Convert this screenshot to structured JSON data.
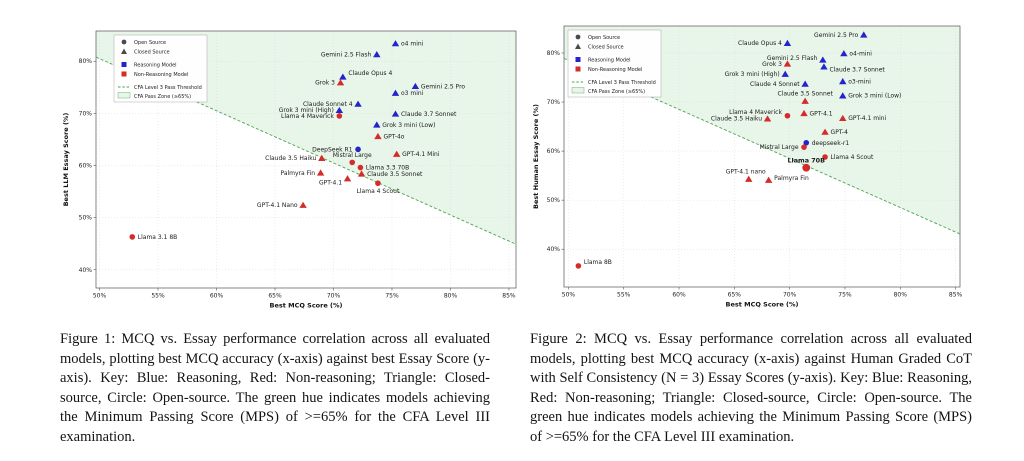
{
  "colors": {
    "reasoning": "#2424cd",
    "non_reasoning": "#d42b2b",
    "threshold": "#49a552",
    "pass_zone": "#e8f5e9",
    "source_marker": "#4a4a4a",
    "grid": "#d9d9d9",
    "spine": "#555555",
    "text": "#222222"
  },
  "figures": [
    {
      "caption": "Figure 1: MCQ vs. Essay performance correlation across all evaluated models, plotting best MCQ accuracy (x-axis) against best Essay Score (y-axis). Key: Blue: Reasoning, Red: Non-reasoning; Triangle: Closed-source, Circle: Open-source. The green hue indicates models achieving the Minimum Passing Score (MPS) of >=65% for the CFA Level III examination."
    },
    {
      "caption": "Figure 2: MCQ vs. Essay performance correlation across all evaluated models, plotting best MCQ accuracy (x-axis) against Human Graded CoT with Self Consistency (N = 3) Essay Scores (y-axis). Key: Blue: Reasoning, Red: Non-reasoning; Triangle: Closed-source, Circle: Open-source. The green hue indicates models achieving the Minimum Passing Score (MPS) of >=65% for the CFA Level III examination."
    }
  ],
  "chart_data": [
    {
      "type": "scatter",
      "title": "",
      "xlabel": "Best MCQ Score (%)",
      "ylabel": "Best LLM Essay Score (%)",
      "xlim": [
        49.7,
        85.6
      ],
      "ylim": [
        36.5,
        85.8
      ],
      "xticks": [
        50,
        55,
        60,
        65,
        70,
        75,
        80,
        85
      ],
      "xtick_labels": [
        "50%",
        "55%",
        "60%",
        "65%",
        "70%",
        "75%",
        "80%",
        "85%"
      ],
      "yticks": [
        40,
        50,
        60,
        70,
        80
      ],
      "ytick_labels": [
        "40%",
        "50%",
        "60%",
        "70%",
        "80%"
      ],
      "grid": true,
      "legend_position": "upper-left",
      "threshold_line": {
        "x1": 49.7,
        "y1": 80.8,
        "x2": 85.6,
        "y2": 44.9
      },
      "legend": [
        {
          "swatch": "circle",
          "label": "Open Source"
        },
        {
          "swatch": "triangle",
          "label": "Closed Source"
        },
        {
          "swatch": "square_blue",
          "label": "Reasoning Model"
        },
        {
          "swatch": "square_red",
          "label": "Non-Reasoning Model"
        },
        {
          "swatch": "dashed_line",
          "label": "CFA Level 3 Pass Threshold"
        },
        {
          "swatch": "zone",
          "label": "CFA Pass Zone (≥65%)"
        }
      ],
      "points": [
        {
          "label": "o4 mini",
          "x": 75.3,
          "y": 83.4,
          "marker": "triangle",
          "class": "reasoning",
          "side": "right"
        },
        {
          "label": "Gemini 2.5 Flash",
          "x": 73.7,
          "y": 81.3,
          "marker": "triangle",
          "class": "reasoning",
          "side": "left"
        },
        {
          "label": "Claude Opus 4",
          "x": 70.8,
          "y": 77.0,
          "marker": "triangle",
          "class": "reasoning",
          "side": "right",
          "dy": -4
        },
        {
          "label": "Grok 3",
          "x": 70.6,
          "y": 75.9,
          "marker": "triangle",
          "class": "non_reasoning",
          "side": "left"
        },
        {
          "label": "Gemini 2.5 Pro",
          "x": 77.0,
          "y": 75.2,
          "marker": "triangle",
          "class": "reasoning",
          "side": "right"
        },
        {
          "label": "o3 mini",
          "x": 75.3,
          "y": 73.9,
          "marker": "triangle",
          "class": "reasoning",
          "side": "right"
        },
        {
          "label": "Claude Sonnet 4",
          "x": 72.1,
          "y": 71.8,
          "marker": "triangle",
          "class": "reasoning",
          "side": "left"
        },
        {
          "label": "Grok 3 mini (High)",
          "x": 70.5,
          "y": 70.6,
          "marker": "triangle",
          "class": "reasoning",
          "side": "left"
        },
        {
          "label": "Llama 4 Maverick",
          "x": 70.5,
          "y": 69.5,
          "marker": "circle",
          "class": "non_reasoning",
          "side": "left"
        },
        {
          "label": "Claude 3.7 Sonnet",
          "x": 75.3,
          "y": 69.9,
          "marker": "triangle",
          "class": "reasoning",
          "side": "right"
        },
        {
          "label": "Grok 3 mini (Low)",
          "x": 73.7,
          "y": 67.8,
          "marker": "triangle",
          "class": "reasoning",
          "side": "right"
        },
        {
          "label": "GPT-4o",
          "x": 73.8,
          "y": 65.6,
          "marker": "triangle",
          "class": "non_reasoning",
          "side": "right"
        },
        {
          "label": "DeepSeek R1",
          "x": 72.1,
          "y": 63.1,
          "marker": "circle",
          "class": "reasoning",
          "side": "left"
        },
        {
          "label": "GPT-4.1 Mini",
          "x": 75.4,
          "y": 62.2,
          "marker": "triangle",
          "class": "non_reasoning",
          "side": "right"
        },
        {
          "label": "Claude 3.5 Haiku",
          "x": 69.0,
          "y": 61.4,
          "marker": "triangle",
          "class": "non_reasoning",
          "side": "left"
        },
        {
          "label": "Mistral Large",
          "x": 71.6,
          "y": 60.6,
          "marker": "circle",
          "class": "non_reasoning",
          "side": "above"
        },
        {
          "label": "Llama 3.3 70B",
          "x": 72.3,
          "y": 59.6,
          "marker": "circle",
          "class": "non_reasoning",
          "side": "right"
        },
        {
          "label": "Claude 3.5 Sonnet",
          "x": 72.4,
          "y": 58.4,
          "marker": "triangle",
          "class": "non_reasoning",
          "side": "right"
        },
        {
          "label": "Palmyra Fin",
          "x": 68.9,
          "y": 58.6,
          "marker": "triangle",
          "class": "non_reasoning",
          "side": "left"
        },
        {
          "label": "GPT-4.1",
          "x": 71.2,
          "y": 57.5,
          "marker": "triangle",
          "class": "non_reasoning",
          "side": "left",
          "dy": 4
        },
        {
          "label": "Llama 4 Scout",
          "x": 73.8,
          "y": 56.6,
          "marker": "circle",
          "class": "non_reasoning",
          "side": "below"
        },
        {
          "label": "GPT-4.1 Nano",
          "x": 67.4,
          "y": 52.4,
          "marker": "triangle",
          "class": "non_reasoning",
          "side": "left"
        },
        {
          "label": "Llama 3.1 8B",
          "x": 52.8,
          "y": 46.3,
          "marker": "circle",
          "class": "non_reasoning",
          "side": "right"
        }
      ]
    },
    {
      "type": "scatter",
      "title": "",
      "xlabel": "Best MCQ Score (%)",
      "ylabel": "Best Human Essay Score (%)",
      "xlim": [
        49.6,
        85.4
      ],
      "ylim": [
        32.3,
        85.5
      ],
      "xticks": [
        50,
        55,
        60,
        65,
        70,
        75,
        80,
        85
      ],
      "xtick_labels": [
        "50%",
        "55%",
        "60%",
        "65%",
        "70%",
        "75%",
        "80%",
        "85%"
      ],
      "yticks": [
        40,
        50,
        60,
        70,
        80
      ],
      "ytick_labels": [
        "40%",
        "50%",
        "60%",
        "70%",
        "80%"
      ],
      "grid": true,
      "legend_position": "upper-left",
      "threshold_line": {
        "x1": 49.6,
        "y1": 78.9,
        "x2": 85.4,
        "y2": 43.1
      },
      "legend": [
        {
          "swatch": "circle",
          "label": "Open Source"
        },
        {
          "swatch": "triangle",
          "label": "Closed Source"
        },
        {
          "swatch": "square_blue",
          "label": "Reasoning Model"
        },
        {
          "swatch": "square_red",
          "label": "Non-Reasoning Model"
        },
        {
          "swatch": "dashed_line",
          "label": "CFA Level 3 Pass Threshold"
        },
        {
          "swatch": "zone",
          "label": "CFA Pass Zone (≥65%)"
        }
      ],
      "points": [
        {
          "label": "Gemini 2.5 Pro",
          "x": 76.7,
          "y": 83.7,
          "marker": "triangle",
          "class": "reasoning",
          "side": "left"
        },
        {
          "label": "Claude Opus 4",
          "x": 69.8,
          "y": 82.0,
          "marker": "triangle",
          "class": "reasoning",
          "side": "left"
        },
        {
          "label": "o4-mini",
          "x": 74.9,
          "y": 79.9,
          "marker": "triangle",
          "class": "reasoning",
          "side": "right"
        },
        {
          "label": "Gemini 2.5 Flash",
          "x": 73.0,
          "y": 78.6,
          "marker": "triangle",
          "class": "reasoning",
          "side": "left",
          "dy": -2
        },
        {
          "label": "Grok 3",
          "x": 69.8,
          "y": 77.8,
          "marker": "triangle",
          "class": "non_reasoning",
          "side": "left"
        },
        {
          "label": "Claude 3.7 Sonnet",
          "x": 73.1,
          "y": 77.2,
          "marker": "triangle",
          "class": "reasoning",
          "side": "right",
          "dy": 3
        },
        {
          "label": "Grok 3 mini (High)",
          "x": 69.6,
          "y": 75.7,
          "marker": "triangle",
          "class": "reasoning",
          "side": "left"
        },
        {
          "label": "Claude 4 Sonnet",
          "x": 71.4,
          "y": 73.7,
          "marker": "triangle",
          "class": "reasoning",
          "side": "left"
        },
        {
          "label": "o3-mini",
          "x": 74.8,
          "y": 74.2,
          "marker": "triangle",
          "class": "reasoning",
          "side": "right"
        },
        {
          "label": "Grok 3 mini (Low)",
          "x": 74.8,
          "y": 71.3,
          "marker": "triangle",
          "class": "reasoning",
          "side": "right"
        },
        {
          "label": "Claude 3.5 Sonnet",
          "x": 71.4,
          "y": 70.2,
          "marker": "triangle",
          "class": "non_reasoning",
          "side": "above"
        },
        {
          "label": "Llama 4 Maverick",
          "x": 69.8,
          "y": 67.2,
          "marker": "circle",
          "class": "non_reasoning",
          "side": "left",
          "dy": -4
        },
        {
          "label": "Claude 3.5 Haiku",
          "x": 68.0,
          "y": 66.6,
          "marker": "triangle",
          "class": "non_reasoning",
          "side": "left"
        },
        {
          "label": "GPT-4.1",
          "x": 71.3,
          "y": 67.7,
          "marker": "triangle",
          "class": "non_reasoning",
          "side": "right"
        },
        {
          "label": "GPT-4.1 mini",
          "x": 74.8,
          "y": 66.7,
          "marker": "triangle",
          "class": "non_reasoning",
          "side": "right"
        },
        {
          "label": "GPT-4",
          "x": 73.2,
          "y": 63.9,
          "marker": "triangle",
          "class": "non_reasoning",
          "side": "right"
        },
        {
          "label": "deepseek-r1",
          "x": 71.5,
          "y": 61.7,
          "marker": "circle",
          "class": "reasoning",
          "side": "right"
        },
        {
          "label": "Mistral Large",
          "x": 71.3,
          "y": 60.8,
          "marker": "circle",
          "class": "non_reasoning",
          "side": "left"
        },
        {
          "label": "Llama 4 Scout",
          "x": 73.2,
          "y": 58.8,
          "marker": "circle",
          "class": "non_reasoning",
          "side": "right"
        },
        {
          "label": "Llama 70B",
          "x": 71.5,
          "y": 56.6,
          "marker": "circle",
          "class": "non_reasoning",
          "side": "above",
          "bold": true,
          "big": true
        },
        {
          "label": "GPT-4.1 nano",
          "x": 66.3,
          "y": 54.3,
          "marker": "triangle",
          "class": "non_reasoning",
          "side": "above",
          "dx": -3
        },
        {
          "label": "Palmyra Fin",
          "x": 68.1,
          "y": 54.1,
          "marker": "triangle",
          "class": "non_reasoning",
          "side": "right",
          "dy": -2
        },
        {
          "label": "Llama 8B",
          "x": 50.9,
          "y": 36.6,
          "marker": "circle",
          "class": "non_reasoning",
          "side": "right",
          "dy": -4
        }
      ]
    }
  ]
}
